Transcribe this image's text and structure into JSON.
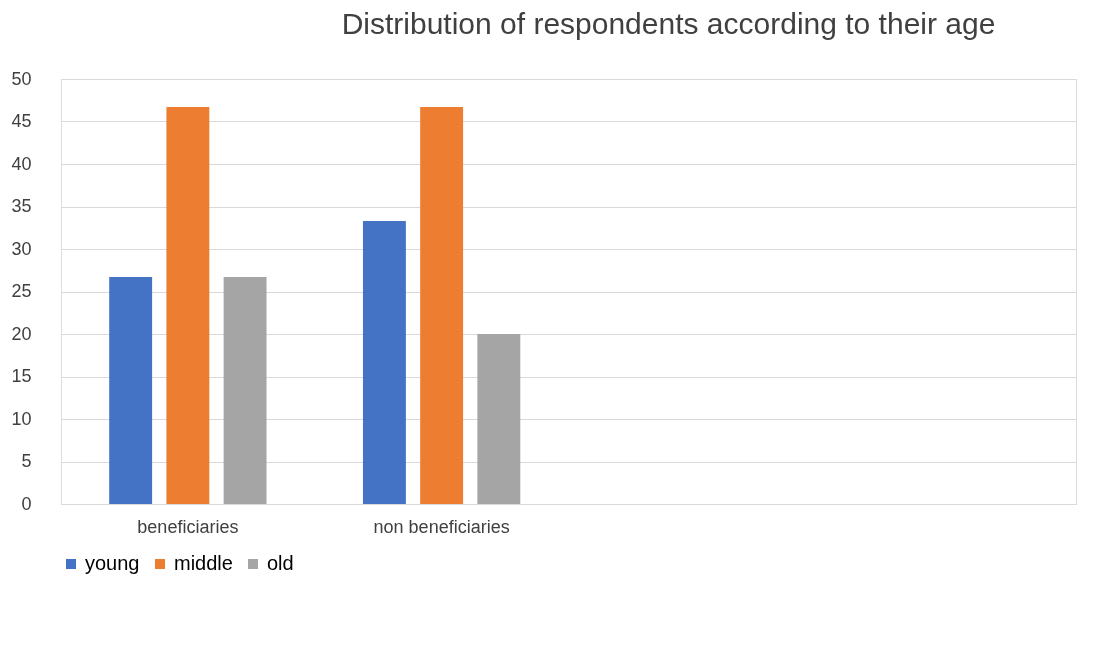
{
  "chart_data": {
    "type": "bar",
    "title": "Distribution of respondents according to their age",
    "categories": [
      "beneficiaries",
      "non beneficiaries",
      null,
      null
    ],
    "series": [
      {
        "name": "young",
        "color": "#4472c4",
        "values": [
          26.7,
          33.3,
          null,
          null
        ]
      },
      {
        "name": "middle",
        "color": "#ed7d31",
        "values": [
          46.7,
          46.7,
          null,
          null
        ]
      },
      {
        "name": "old",
        "color": "#a5a5a5",
        "values": [
          26.7,
          20,
          null,
          null
        ]
      }
    ],
    "ylim": [
      0,
      50
    ],
    "yticks": [
      0,
      5,
      10,
      15,
      20,
      25,
      30,
      35,
      40,
      45,
      50
    ],
    "grid": "y",
    "legend": "bottom"
  }
}
